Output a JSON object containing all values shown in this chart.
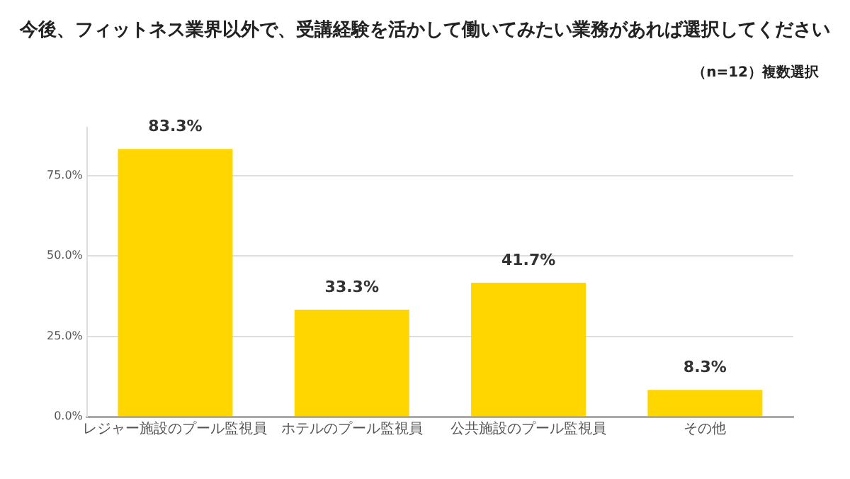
{
  "chart_data": {
    "type": "bar",
    "title": "今後、フィットネス業界以外で、受講経験を活かして働いてみたい業務があれば選択してください",
    "subtitle": "（n=12）複数選択",
    "categories": [
      "レジャー施設のプール監視員",
      "ホテルのプール監視員",
      "公共施設のプール監視員",
      "その他"
    ],
    "values": [
      83.3,
      33.3,
      41.7,
      8.3
    ],
    "color": "#ffd600",
    "value_labels": [
      "83.3%",
      "33.3%",
      "41.7%",
      "8.3%"
    ],
    "ylim": [
      0,
      90
    ],
    "yticks": [
      {
        "value": 0,
        "label": "0.0%"
      },
      {
        "value": 25,
        "label": "25.0%"
      },
      {
        "value": 50,
        "label": "50.0%"
      },
      {
        "value": 75,
        "label": "75.0%"
      }
    ],
    "grid": "y",
    "legend": false
  }
}
